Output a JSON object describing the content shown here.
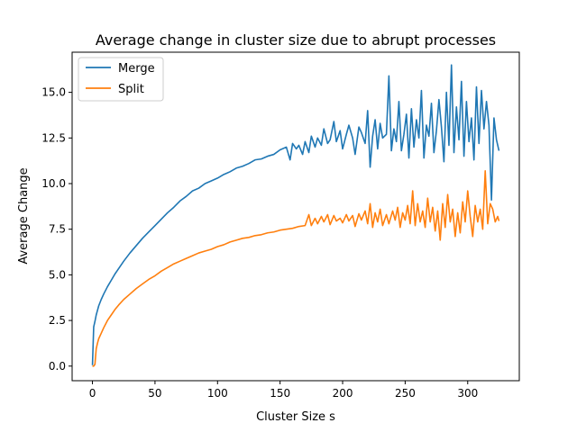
{
  "chart_data": {
    "type": "line",
    "title": "Average change in cluster size due to abrupt processes",
    "xlabel": "Cluster Size s",
    "ylabel": "Average Change",
    "xlim": [
      -16.25,
      341.25
    ],
    "ylim": [
      -0.8,
      17.2
    ],
    "x_ticks": [
      0,
      50,
      100,
      150,
      200,
      250,
      300
    ],
    "y_ticks": [
      0.0,
      2.5,
      5.0,
      7.5,
      10.0,
      12.5,
      15.0
    ],
    "x_tick_labels": [
      "0",
      "50",
      "100",
      "150",
      "200",
      "250",
      "300"
    ],
    "y_tick_labels": [
      "0.0",
      "2.5",
      "5.0",
      "7.5",
      "10.0",
      "12.5",
      "15.0"
    ],
    "legend_position": "top-left",
    "grid": false,
    "series": [
      {
        "name": "Merge",
        "color": "#1f77b4",
        "points": [
          [
            0,
            0.05
          ],
          [
            1,
            2.15
          ],
          [
            2,
            2.45
          ],
          [
            3,
            2.8
          ],
          [
            4,
            3.05
          ],
          [
            5,
            3.3
          ],
          [
            7,
            3.65
          ],
          [
            9,
            3.95
          ],
          [
            12,
            4.35
          ],
          [
            15,
            4.7
          ],
          [
            18,
            5.05
          ],
          [
            21,
            5.35
          ],
          [
            25,
            5.75
          ],
          [
            30,
            6.2
          ],
          [
            35,
            6.6
          ],
          [
            40,
            7.0
          ],
          [
            45,
            7.35
          ],
          [
            50,
            7.7
          ],
          [
            55,
            8.05
          ],
          [
            60,
            8.4
          ],
          [
            65,
            8.7
          ],
          [
            70,
            9.05
          ],
          [
            75,
            9.3
          ],
          [
            80,
            9.6
          ],
          [
            85,
            9.75
          ],
          [
            90,
            10.0
          ],
          [
            95,
            10.15
          ],
          [
            100,
            10.3
          ],
          [
            105,
            10.5
          ],
          [
            110,
            10.65
          ],
          [
            115,
            10.85
          ],
          [
            120,
            10.95
          ],
          [
            125,
            11.1
          ],
          [
            130,
            11.3
          ],
          [
            135,
            11.35
          ],
          [
            140,
            11.5
          ],
          [
            145,
            11.6
          ],
          [
            150,
            11.85
          ],
          [
            155,
            12.0
          ],
          [
            158,
            11.3
          ],
          [
            160,
            12.2
          ],
          [
            163,
            11.9
          ],
          [
            165,
            12.1
          ],
          [
            168,
            11.6
          ],
          [
            170,
            12.3
          ],
          [
            173,
            11.7
          ],
          [
            175,
            12.6
          ],
          [
            178,
            12.0
          ],
          [
            180,
            12.5
          ],
          [
            183,
            12.1
          ],
          [
            185,
            13.0
          ],
          [
            188,
            12.2
          ],
          [
            190,
            12.4
          ],
          [
            193,
            13.4
          ],
          [
            195,
            12.3
          ],
          [
            198,
            12.9
          ],
          [
            200,
            11.9
          ],
          [
            203,
            12.7
          ],
          [
            205,
            13.2
          ],
          [
            208,
            12.5
          ],
          [
            210,
            11.6
          ],
          [
            213,
            13.1
          ],
          [
            215,
            12.8
          ],
          [
            218,
            12.2
          ],
          [
            220,
            14.0
          ],
          [
            222,
            10.9
          ],
          [
            224,
            12.6
          ],
          [
            226,
            13.5
          ],
          [
            228,
            11.9
          ],
          [
            230,
            13.3
          ],
          [
            232,
            12.5
          ],
          [
            235,
            12.7
          ],
          [
            237,
            15.9
          ],
          [
            239,
            11.8
          ],
          [
            241,
            13.0
          ],
          [
            243,
            12.3
          ],
          [
            245,
            14.5
          ],
          [
            247,
            11.8
          ],
          [
            249,
            12.7
          ],
          [
            251,
            13.8
          ],
          [
            253,
            11.4
          ],
          [
            255,
            14.1
          ],
          [
            257,
            12.0
          ],
          [
            259,
            13.5
          ],
          [
            261,
            12.5
          ],
          [
            263,
            15.1
          ],
          [
            265,
            11.4
          ],
          [
            267,
            13.2
          ],
          [
            269,
            12.6
          ],
          [
            271,
            14.4
          ],
          [
            273,
            11.7
          ],
          [
            275,
            12.9
          ],
          [
            277,
            14.6
          ],
          [
            279,
            13.1
          ],
          [
            281,
            11.2
          ],
          [
            283,
            15.0
          ],
          [
            285,
            12.1
          ],
          [
            287,
            16.5
          ],
          [
            289,
            11.7
          ],
          [
            291,
            14.2
          ],
          [
            293,
            12.4
          ],
          [
            295,
            15.6
          ],
          [
            297,
            11.5
          ],
          [
            299,
            14.5
          ],
          [
            301,
            12.3
          ],
          [
            303,
            13.6
          ],
          [
            305,
            11.3
          ],
          [
            307,
            15.3
          ],
          [
            309,
            12.2
          ],
          [
            311,
            15.1
          ],
          [
            313,
            13.0
          ],
          [
            315,
            14.5
          ],
          [
            317,
            13.2
          ],
          [
            319,
            9.1
          ],
          [
            321,
            13.6
          ],
          [
            323,
            12.4
          ],
          [
            325,
            11.8
          ]
        ]
      },
      {
        "name": "Split",
        "color": "#ff7f0e",
        "points": [
          [
            0,
            0.0
          ],
          [
            1,
            0.0
          ],
          [
            2,
            0.1
          ],
          [
            3,
            0.95
          ],
          [
            4,
            1.25
          ],
          [
            5,
            1.5
          ],
          [
            7,
            1.8
          ],
          [
            9,
            2.1
          ],
          [
            12,
            2.5
          ],
          [
            15,
            2.8
          ],
          [
            18,
            3.1
          ],
          [
            21,
            3.35
          ],
          [
            25,
            3.65
          ],
          [
            30,
            3.95
          ],
          [
            35,
            4.25
          ],
          [
            40,
            4.5
          ],
          [
            45,
            4.75
          ],
          [
            50,
            4.95
          ],
          [
            55,
            5.2
          ],
          [
            60,
            5.4
          ],
          [
            65,
            5.6
          ],
          [
            70,
            5.75
          ],
          [
            75,
            5.9
          ],
          [
            80,
            6.05
          ],
          [
            85,
            6.2
          ],
          [
            90,
            6.3
          ],
          [
            95,
            6.4
          ],
          [
            100,
            6.55
          ],
          [
            105,
            6.65
          ],
          [
            110,
            6.8
          ],
          [
            115,
            6.9
          ],
          [
            120,
            7.0
          ],
          [
            125,
            7.05
          ],
          [
            130,
            7.15
          ],
          [
            135,
            7.2
          ],
          [
            140,
            7.3
          ],
          [
            145,
            7.35
          ],
          [
            150,
            7.45
          ],
          [
            155,
            7.5
          ],
          [
            160,
            7.55
          ],
          [
            165,
            7.65
          ],
          [
            170,
            7.7
          ],
          [
            173,
            8.3
          ],
          [
            175,
            7.7
          ],
          [
            178,
            8.1
          ],
          [
            180,
            7.8
          ],
          [
            183,
            8.2
          ],
          [
            185,
            7.9
          ],
          [
            188,
            8.3
          ],
          [
            190,
            7.75
          ],
          [
            193,
            8.25
          ],
          [
            195,
            7.95
          ],
          [
            198,
            8.1
          ],
          [
            200,
            7.85
          ],
          [
            203,
            8.3
          ],
          [
            205,
            7.95
          ],
          [
            208,
            8.25
          ],
          [
            210,
            7.65
          ],
          [
            213,
            8.35
          ],
          [
            215,
            8.0
          ],
          [
            218,
            8.5
          ],
          [
            220,
            7.8
          ],
          [
            222,
            8.9
          ],
          [
            224,
            7.6
          ],
          [
            226,
            8.4
          ],
          [
            228,
            7.9
          ],
          [
            230,
            8.6
          ],
          [
            232,
            7.7
          ],
          [
            235,
            8.3
          ],
          [
            237,
            7.8
          ],
          [
            240,
            8.5
          ],
          [
            242,
            8.0
          ],
          [
            244,
            8.7
          ],
          [
            246,
            7.6
          ],
          [
            248,
            8.4
          ],
          [
            250,
            8.0
          ],
          [
            252,
            8.8
          ],
          [
            254,
            7.8
          ],
          [
            256,
            9.6
          ],
          [
            258,
            7.7
          ],
          [
            260,
            8.9
          ],
          [
            262,
            7.9
          ],
          [
            264,
            8.5
          ],
          [
            266,
            7.6
          ],
          [
            268,
            9.2
          ],
          [
            270,
            7.9
          ],
          [
            272,
            8.7
          ],
          [
            274,
            7.4
          ],
          [
            276,
            8.5
          ],
          [
            278,
            6.9
          ],
          [
            280,
            8.9
          ],
          [
            282,
            7.6
          ],
          [
            284,
            9.4
          ],
          [
            286,
            7.9
          ],
          [
            288,
            8.6
          ],
          [
            290,
            7.1
          ],
          [
            292,
            8.4
          ],
          [
            294,
            7.3
          ],
          [
            296,
            9.0
          ],
          [
            298,
            7.9
          ],
          [
            300,
            9.6
          ],
          [
            302,
            8.2
          ],
          [
            304,
            7.1
          ],
          [
            306,
            8.8
          ],
          [
            308,
            7.9
          ],
          [
            310,
            8.6
          ],
          [
            312,
            7.5
          ],
          [
            314,
            10.7
          ],
          [
            316,
            7.8
          ],
          [
            318,
            8.9
          ],
          [
            320,
            8.6
          ],
          [
            322,
            7.9
          ],
          [
            324,
            8.2
          ],
          [
            325,
            7.95
          ]
        ]
      }
    ]
  }
}
